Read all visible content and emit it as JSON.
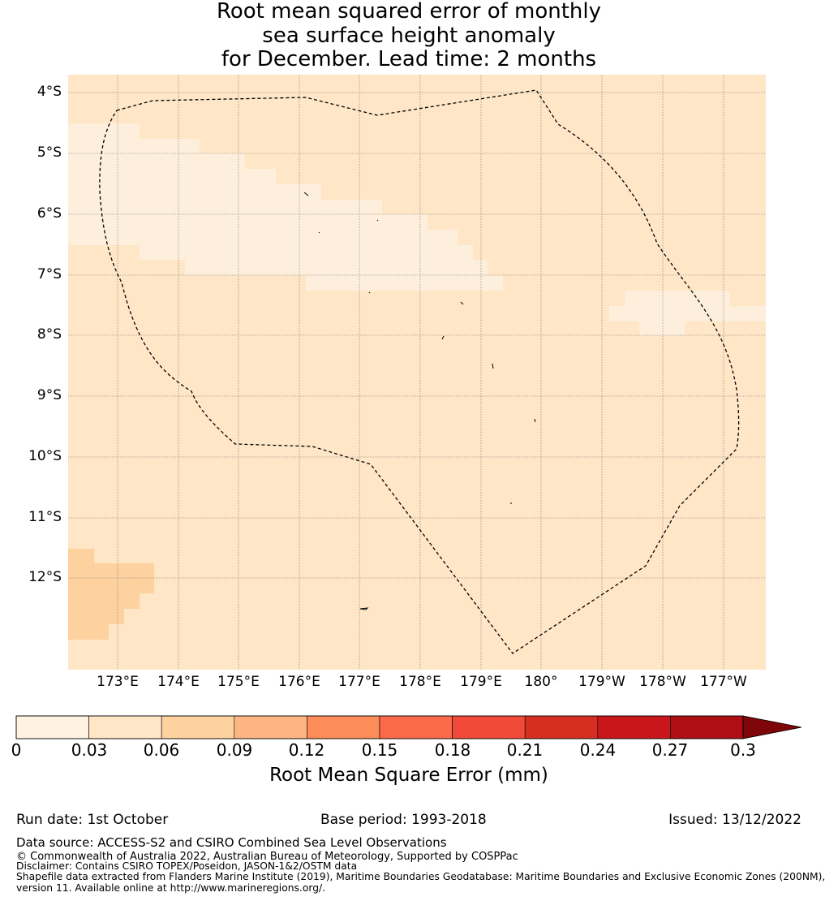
{
  "title": {
    "line1": "Root mean squared error of monthly",
    "line2": "sea surface height anomaly",
    "line3": "for December. Lead time: 2 months"
  },
  "map": {
    "lat_labels": [
      "4°S",
      "5°S",
      "6°S",
      "7°S",
      "8°S",
      "9°S",
      "10°S",
      "11°S",
      "12°S"
    ],
    "lon_labels": [
      "173°E",
      "174°E",
      "175°E",
      "176°E",
      "177°E",
      "178°E",
      "179°E",
      "180°",
      "179°W",
      "178°W",
      "177°W"
    ],
    "colors": {
      "background": "#fee6c7",
      "light": "#feefdd",
      "medium": "#fdd29f",
      "boundary": "#000000"
    }
  },
  "colorbar": {
    "ticks": [
      "0",
      "0.03",
      "0.06",
      "0.09",
      "0.12",
      "0.15",
      "0.18",
      "0.21",
      "0.24",
      "0.27",
      "0.3"
    ],
    "colors": [
      "#fff2e3",
      "#fee6c7",
      "#fdd29f",
      "#fdb682",
      "#fc8d5a",
      "#fb6a4a",
      "#f14a39",
      "#d62f22",
      "#c9161a",
      "#ad0f15",
      "#7e0508"
    ],
    "label": "Root Mean Square Error (mm)"
  },
  "footer": {
    "run_date": "Run date: 1st October",
    "base_period": "Base period: 1993-2018",
    "issued": "Issued: 13/12/2022",
    "data_source": "Data source: ACCESS-S2 and CSIRO Combined Sea Level Observations",
    "copyright": "© Commonwealth of Australia 2022, Australian Bureau of Meteorology, Supported by COSPPac",
    "disclaimer": "Disclaimer: Contains CSIRO TOPEX/Poseidon, JASON-1&2/OSTM data",
    "shapefile_line1": "Shapefile data extracted from Flanders Marine Institute (2019), Maritime Boundaries Geodatabase: Maritime Boundaries and Exclusive Economic Zones (200NM),",
    "shapefile_line2": "version 11. Available online at http://www.marineregions.org/."
  }
}
